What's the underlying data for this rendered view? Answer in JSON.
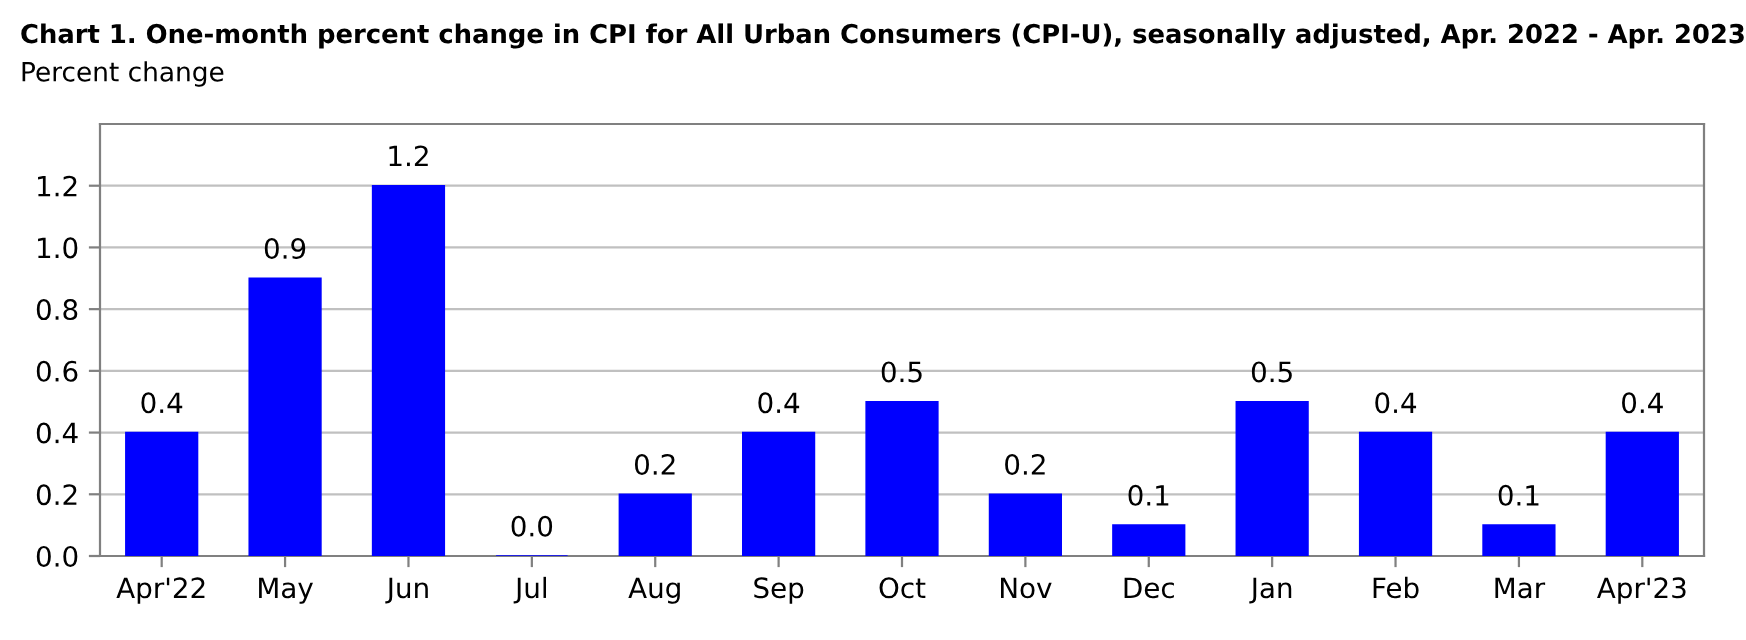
{
  "chart_data": {
    "type": "bar",
    "title": "Chart 1. One-month percent change in CPI for All Urban Consumers (CPI-U), seasonally adjusted, Apr. 2022 - Apr. 2023",
    "subtitle": "Percent change",
    "categories": [
      "Apr'22",
      "May",
      "Jun",
      "Jul",
      "Aug",
      "Sep",
      "Oct",
      "Nov",
      "Dec",
      "Jan",
      "Feb",
      "Mar",
      "Apr'23"
    ],
    "values": [
      0.4,
      0.9,
      1.2,
      0.0,
      0.2,
      0.4,
      0.5,
      0.2,
      0.1,
      0.5,
      0.4,
      0.1,
      0.4
    ],
    "value_labels": [
      "0.4",
      "0.9",
      "1.2",
      "0.0",
      "0.2",
      "0.4",
      "0.5",
      "0.2",
      "0.1",
      "0.5",
      "0.4",
      "0.1",
      "0.4"
    ],
    "color": "#0000ff",
    "ylim": [
      0,
      1.4
    ],
    "yticks": [
      {
        "value": 0,
        "label": "0.0"
      },
      0.2,
      0.4,
      0.6,
      0.8,
      {
        "value": 1.0,
        "label": "1.0"
      },
      1.2
    ],
    "grid": "y"
  }
}
